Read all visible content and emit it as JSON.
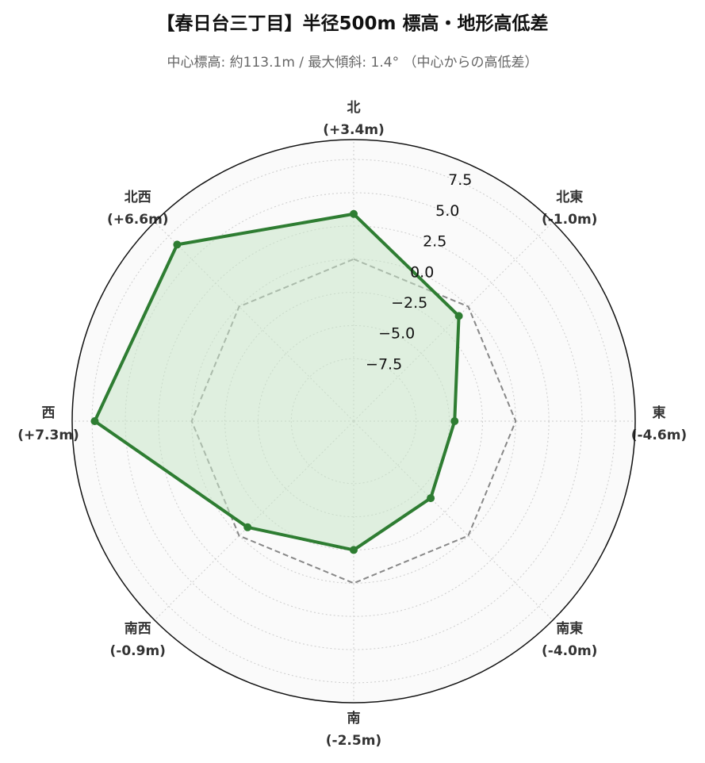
{
  "title": "【春日台三丁目】半径500m 標高・地形高低差",
  "subtitle": "中心標高: 約113.1m / 最大傾斜: 1.4° （中心からの高低差）",
  "chart_data": {
    "type": "radar",
    "title": "【春日台三丁目】半径500m 標高・地形高低差",
    "subtitle": "中心標高: 約113.1m / 最大傾斜: 1.4° （中心からの高低差）",
    "categories": [
      "北",
      "北東",
      "東",
      "南東",
      "南",
      "南西",
      "西",
      "北西"
    ],
    "category_value_labels": [
      "(+3.4m)",
      "(-1.0m)",
      "(-4.6m)",
      "(-4.0m)",
      "(-2.5m)",
      "(-0.9m)",
      "(+7.3m)",
      "(+6.6m)"
    ],
    "series": [
      {
        "values": [
          3.4,
          -1.0,
          -4.6,
          -4.0,
          -2.5,
          -0.9,
          7.3,
          6.6
        ],
        "color": "#2e7d32",
        "fill": "#c8e6c9"
      }
    ],
    "reference": {
      "value": 0.0,
      "color": "#888888",
      "style": "dashed"
    },
    "rlim": [
      -12.2,
      9.0
    ],
    "rticks": [
      -7.5,
      -5.0,
      -2.5,
      0.0,
      2.5,
      5.0,
      7.5
    ],
    "rtick_labels": [
      "−7.5",
      "−5.0",
      "−2.5",
      "0.0",
      "2.5",
      "5.0",
      "7.5"
    ],
    "grid": true,
    "background": "#fafafa"
  }
}
